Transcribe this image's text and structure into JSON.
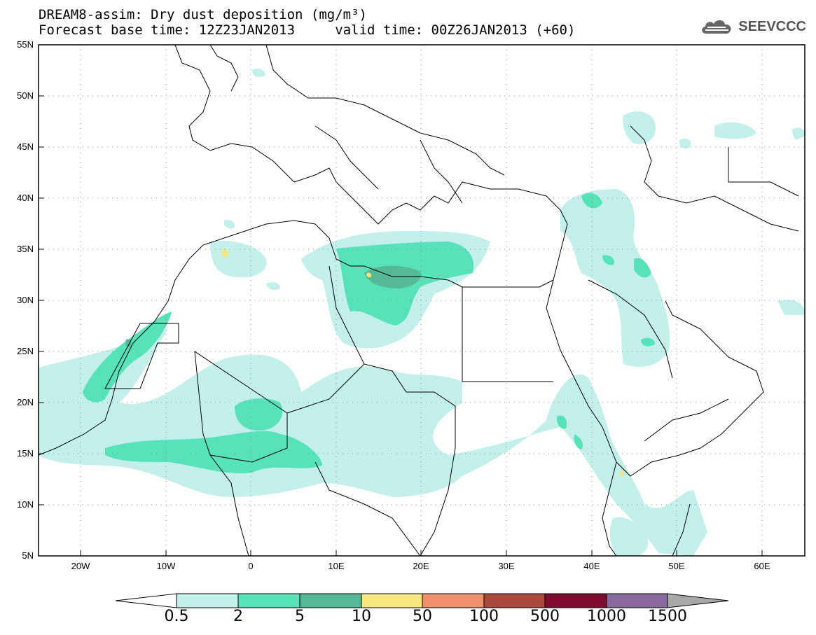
{
  "title": {
    "line1": "DREAM8-assim: Dry dust deposition (mg/m³)",
    "line2_left": "Forecast base time: 12Z23JAN2013",
    "line2_right": "valid time: 00Z26JAN2013 (+60)"
  },
  "logo": {
    "text": "SEEVCCC",
    "icon": "cloud-icon"
  },
  "map": {
    "lat_range": [
      5,
      55
    ],
    "lon_range": [
      -25,
      65
    ],
    "lat_ticks": [
      "5N",
      "10N",
      "15N",
      "20N",
      "25N",
      "30N",
      "35N",
      "40N",
      "45N",
      "50N",
      "55N"
    ],
    "lon_ticks": [
      "20W",
      "10W",
      "0",
      "10E",
      "20E",
      "30E",
      "40E",
      "50E",
      "60E"
    ]
  },
  "colorbar": {
    "labels": [
      "0.5",
      "2",
      "5",
      "10",
      "50",
      "100",
      "500",
      "1000",
      "1500"
    ],
    "colors": [
      "#c3f0ea",
      "#58e2ba",
      "#55b896",
      "#f5e77d",
      "#ee916a",
      "#aa4a3c",
      "#7f0b2f",
      "#8a6a9e",
      "#a8a8a8"
    ]
  }
}
